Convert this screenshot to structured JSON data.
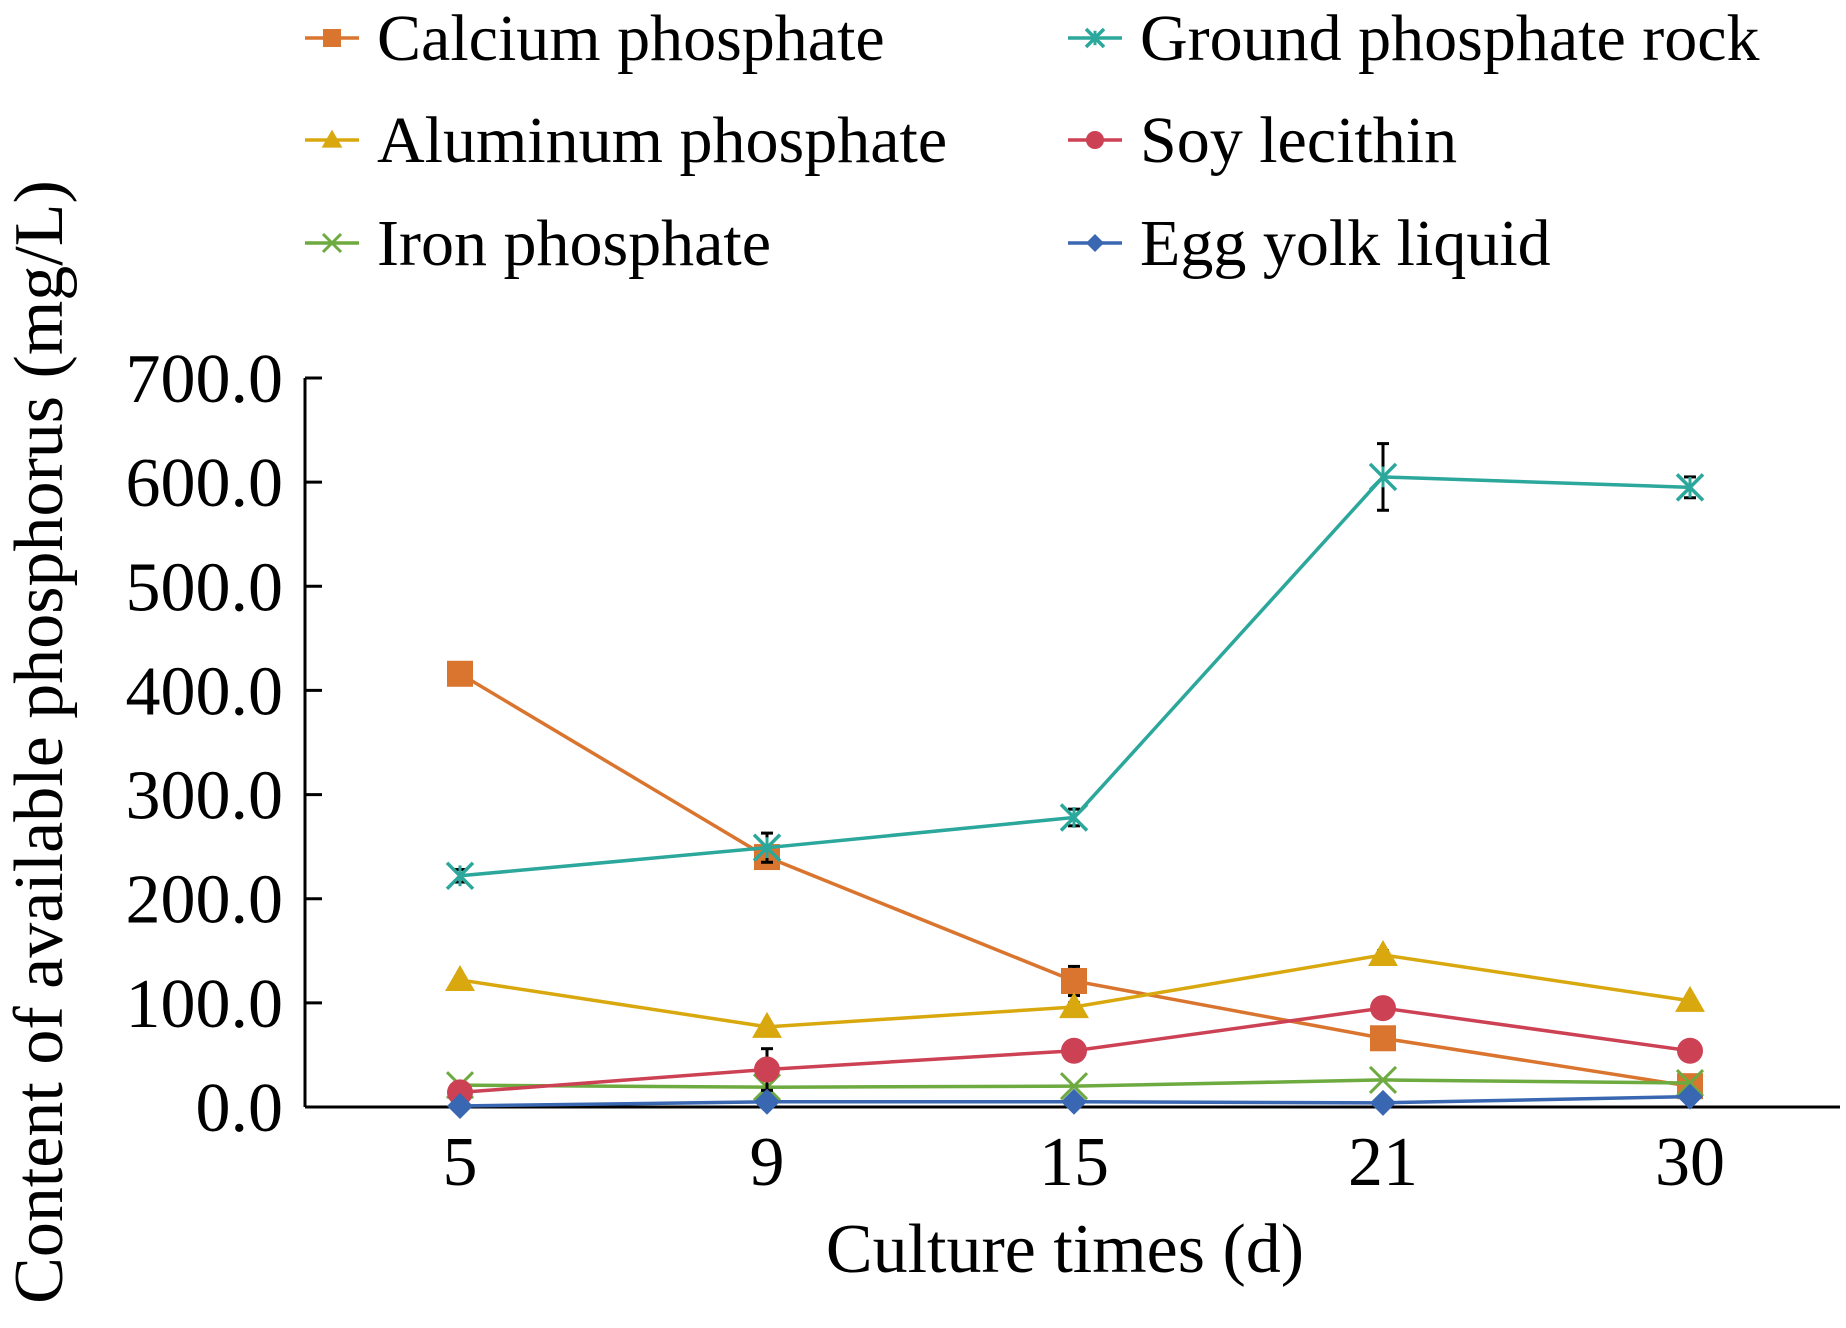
{
  "chart_data": {
    "type": "line",
    "title": "",
    "xlabel": "Culture times (d)",
    "ylabel": "Content of available phosphorus (mg/L)",
    "categories": [
      "5",
      "9",
      "15",
      "21",
      "30"
    ],
    "y_ticks": [
      "0.0",
      "100.0",
      "200.0",
      "300.0",
      "400.0",
      "500.0",
      "600.0",
      "700.0"
    ],
    "ylim": [
      0,
      700
    ],
    "grid": false,
    "legend_position": "top",
    "series": [
      {
        "name": "Calcium phosphate",
        "color": "#D9752F",
        "marker": "square",
        "values": [
          416,
          240,
          121,
          66,
          20
        ],
        "errors": [
          0,
          3,
          14,
          4,
          2
        ]
      },
      {
        "name": "Aluminum phosphate",
        "color": "#D9A80E",
        "marker": "triangle",
        "values": [
          122,
          77,
          96,
          146,
          102
        ],
        "errors": [
          0,
          2,
          4,
          4,
          2
        ]
      },
      {
        "name": "Iron phosphate",
        "color": "#6DAA3F",
        "marker": "x",
        "values": [
          21,
          19,
          20,
          26,
          23
        ],
        "errors": [
          0,
          0,
          0,
          0,
          0
        ]
      },
      {
        "name": "Ground phosphate rock",
        "color": "#2BA79C",
        "marker": "star",
        "values": [
          222,
          249,
          278,
          605,
          595
        ],
        "errors": [
          6,
          14,
          8,
          32,
          10
        ]
      },
      {
        "name": "Soy lecithin",
        "color": "#CD4154",
        "marker": "circle",
        "values": [
          14,
          36,
          54,
          95,
          54
        ],
        "errors": [
          0,
          20,
          0,
          0,
          0
        ]
      },
      {
        "name": "Egg yolk liquid",
        "color": "#3A67B1",
        "marker": "diamond",
        "values": [
          1,
          5,
          5,
          4,
          10
        ],
        "errors": [
          0,
          0,
          0,
          0,
          0
        ]
      }
    ]
  }
}
